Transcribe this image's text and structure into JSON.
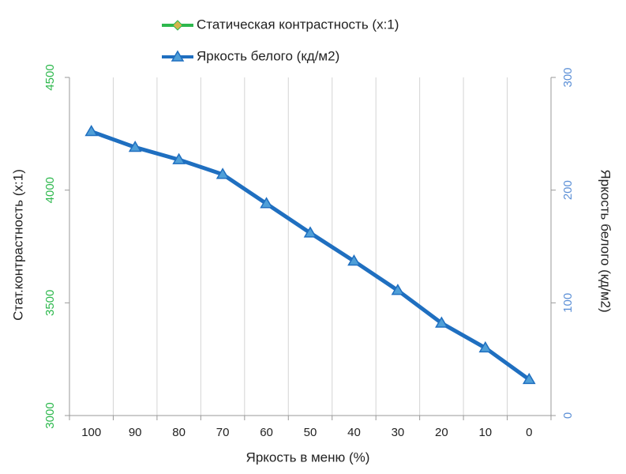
{
  "chart_data": {
    "type": "line",
    "x_label": "Яркость в меню (%)",
    "y_label": "Стат.контрастность  (x:1)",
    "y2_label": "Яркость белого (кд/м2)",
    "categories": [
      "100",
      "90",
      "80",
      "70",
      "60",
      "50",
      "40",
      "30",
      "20",
      "10",
      "0"
    ],
    "series": [
      {
        "name": "Статическая контрастность (x:1)",
        "color": "#2db84d",
        "marker_color": "#d4b44a",
        "marker": "diamond",
        "axis": "y",
        "values": [
          null,
          null,
          null,
          null,
          null,
          null,
          null,
          null,
          null,
          null,
          null
        ]
      },
      {
        "name": "Яркость белого (кд/м2)",
        "color": "#1f6fc0",
        "marker_color": "#4f9fd8",
        "marker": "triangle",
        "axis": "y2",
        "values": [
          252,
          238,
          227,
          214,
          188,
          162,
          137,
          111,
          82,
          60,
          32
        ]
      }
    ],
    "ylim": [
      3000,
      4500
    ],
    "yticks": [
      3000,
      3500,
      4000,
      4500
    ],
    "ytick_color": "#2db84d",
    "y2lim": [
      0,
      300
    ],
    "y2ticks": [
      0,
      100,
      200,
      300
    ],
    "y2tick_color": "#5b8fd6",
    "grid": "vertical"
  }
}
